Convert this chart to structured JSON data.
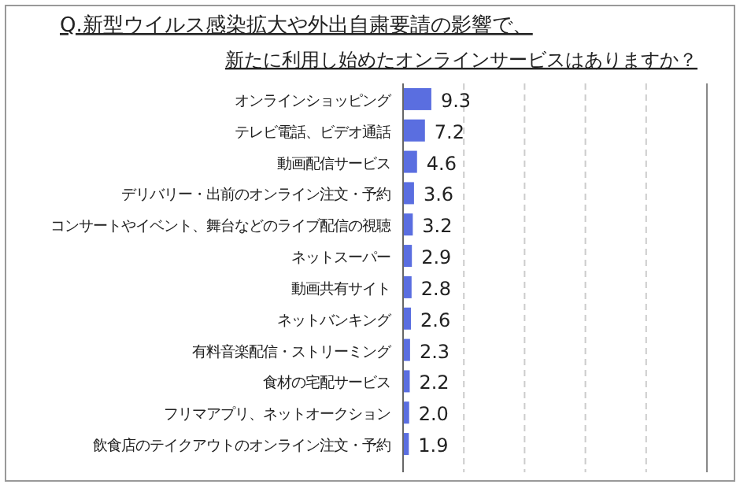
{
  "chart_data": {
    "type": "bar",
    "orientation": "horizontal",
    "title": "Q.新型ウイルス感染拡大や外出自粛要請の影響で、",
    "subtitle": "新たに利用し始めたオンラインサービスはありますか？",
    "categories": [
      "オンラインショッピング",
      "テレビ電話、ビデオ通話",
      "動画配信サービス",
      "デリバリー・出前のオンライン注文・予約",
      "コンサートやイベント、舞台などのライブ配信の視聴",
      "ネットスーパー",
      "動画共有サイト",
      "ネットバンキング",
      "有料音楽配信・ストリーミング",
      "食材の宅配サービス",
      "フリマアプリ、ネットオークション",
      "飲食店のテイクアウトのオンライン注文・予約"
    ],
    "values": [
      9.3,
      7.2,
      4.6,
      3.6,
      3.2,
      2.9,
      2.8,
      2.6,
      2.3,
      2.2,
      2.0,
      1.9
    ],
    "value_labels": [
      "9.3",
      "7.2",
      "4.6",
      "3.6",
      "3.2",
      "2.9",
      "2.8",
      "2.6",
      "2.3",
      "2.2",
      "2.0",
      "1.9"
    ],
    "color": "#5a6ee0",
    "xlim": [
      0,
      100
    ],
    "xticks": [
      {
        "value": 0,
        "label": null
      },
      {
        "value": 20,
        "label": null
      },
      {
        "value": 40,
        "label": null
      },
      {
        "value": 60,
        "label": null
      },
      {
        "value": 80,
        "label": null
      },
      {
        "value": 100,
        "label": null
      }
    ],
    "grid": "x",
    "tick_labels": "y"
  }
}
